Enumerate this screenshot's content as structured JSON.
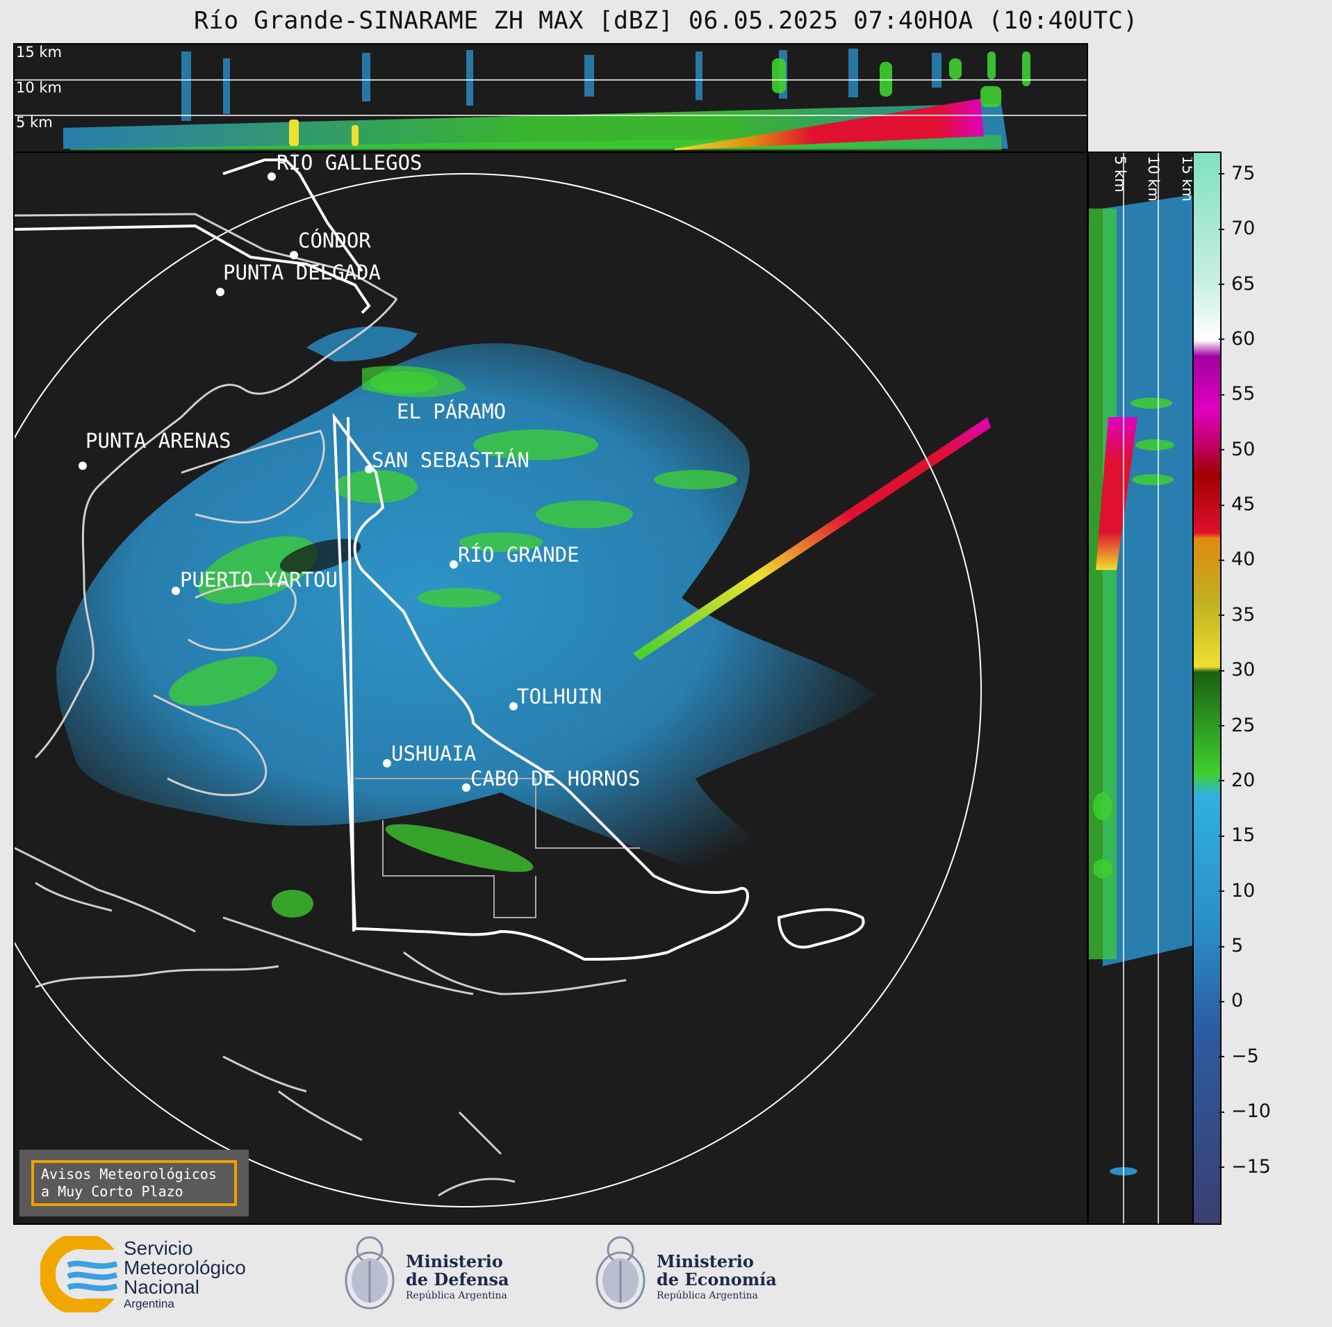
{
  "title": "Río Grande-SINARAME ZH MAX [dBZ] 06.05.2025 07:40HOA (10:40UTC)",
  "top_section": {
    "altitude_labels": [
      "15 km",
      "10 km",
      "5 km"
    ]
  },
  "right_section": {
    "altitude_labels": [
      "5 km",
      "10 km",
      "15 km"
    ]
  },
  "map": {
    "cities": [
      {
        "name": "RÍO GALLEGOS"
      },
      {
        "name": "CÓNDOR"
      },
      {
        "name": "PUNTA DELGADA"
      },
      {
        "name": "EL PÁRAMO"
      },
      {
        "name": "PUNTA ARENAS"
      },
      {
        "name": "SAN SEBASTIÁN"
      },
      {
        "name": "RÍO GRANDE"
      },
      {
        "name": "PUERTO YARTOU"
      },
      {
        "name": "TOLHUIN"
      },
      {
        "name": "USHUAIA"
      },
      {
        "name": "CABO DE HORNOS"
      }
    ]
  },
  "colorbar": {
    "unit": "dBZ",
    "ticks": [
      "75",
      "70",
      "65",
      "60",
      "55",
      "50",
      "45",
      "40",
      "35",
      "30",
      "25",
      "20",
      "15",
      "10",
      "5",
      "0",
      "−5",
      "−10",
      "−15"
    ],
    "range": [
      -20,
      77
    ],
    "colors": {
      "low": "#3a3f70",
      "blue": "#2a8fc8",
      "green": "#3fd030",
      "yellow": "#f0e030",
      "orange": "#e08a10",
      "red": "#e01030",
      "magenta": "#e000c0",
      "white": "#ffffff",
      "teal": "#80e0c0"
    }
  },
  "avisos": {
    "line1": "Avisos Meteorológicos",
    "line2": "a Muy Corto Plazo"
  },
  "logos": {
    "smn": {
      "line1": "Servicio",
      "line2": "Meteorológico",
      "line3": "Nacional",
      "line4": "Argentina"
    },
    "defensa": {
      "line1": "Ministerio",
      "line2": "de Defensa",
      "line3": "República Argentina"
    },
    "economia": {
      "line1": "Ministerio",
      "line2": "de Economía",
      "line3": "República Argentina"
    }
  }
}
